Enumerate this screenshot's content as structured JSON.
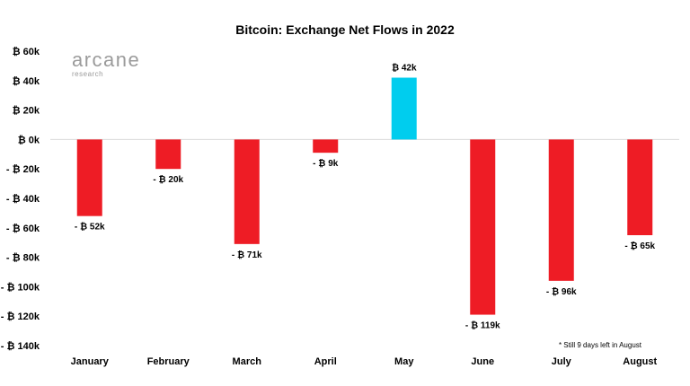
{
  "logo": {
    "name": "arcane",
    "subtitle": "research"
  },
  "chart_data": {
    "type": "bar",
    "title": "Bitcoin: Exchange Net Flows in 2022",
    "xlabel": "",
    "ylabel": "",
    "categories": [
      "January",
      "February",
      "March",
      "April",
      "May",
      "June",
      "July",
      "August"
    ],
    "values": [
      -52,
      -20,
      -71,
      -9,
      42,
      -119,
      -96,
      -65
    ],
    "value_unit": "k BTC",
    "data_labels": [
      "- ₿ 52k",
      "- ₿ 20k",
      "- ₿ 71k",
      "- ₿ 9k",
      "₿ 42k",
      "- ₿ 119k",
      "- ₿ 96k",
      "- ₿ 65k"
    ],
    "ylim": [
      -140,
      60
    ],
    "yticks": [
      60,
      40,
      20,
      0,
      -20,
      -40,
      -60,
      -80,
      -100,
      -120,
      -140
    ],
    "ytick_labels": [
      "₿ 60k",
      "₿ 40k",
      "₿ 20k",
      "₿ 0k",
      "- ₿ 20k",
      "- ₿ 40k",
      "- ₿ 60k",
      "- ₿ 80k",
      "- ₿ 100k",
      "- ₿ 120k",
      "- ₿ 140k"
    ],
    "grid": false,
    "legend": "none",
    "annotation": "* Still 9 days left in August",
    "colors": {
      "positive": "#00cdee",
      "negative": "#ee1c25",
      "axis": "#d9d9d9"
    }
  }
}
